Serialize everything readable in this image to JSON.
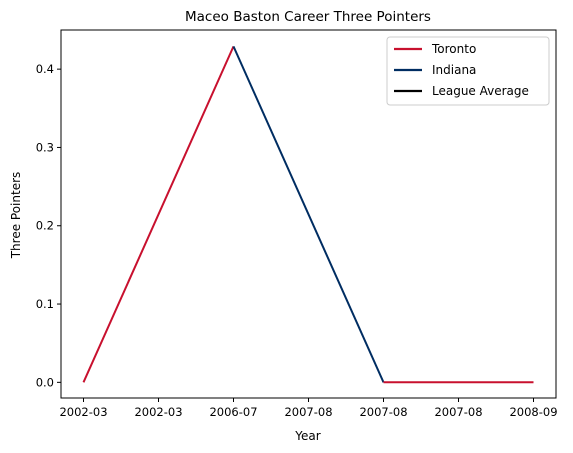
{
  "chart_data": {
    "type": "line",
    "title": "Maceo Baston Career Three Pointers",
    "xlabel": "Year",
    "ylabel": "Three Pointers",
    "x_tick_labels": [
      "2002-03",
      "2002-03",
      "2006-07",
      "2007-08",
      "2007-08",
      "2007-08",
      "2008-09"
    ],
    "xlim": [
      -0.3,
      6.3
    ],
    "ylim": [
      -0.02,
      0.45
    ],
    "y_ticks": [
      0.0,
      0.1,
      0.2,
      0.3,
      0.4
    ],
    "y_tick_labels": [
      "0.0",
      "0.1",
      "0.2",
      "0.3",
      "0.4"
    ],
    "grid": false,
    "legend": "top-right",
    "series": [
      {
        "name": "Toronto",
        "color": "#c8102e",
        "x": [
          0,
          2
        ],
        "y": [
          0.0,
          0.429
        ]
      },
      {
        "name": "Indiana",
        "color": "#002d62",
        "x": [
          2,
          4
        ],
        "y": [
          0.429,
          0.0
        ]
      },
      {
        "name": "Toronto",
        "color": "#c8102e",
        "x": [
          4,
          6
        ],
        "y": [
          0.0,
          0.0
        ]
      },
      {
        "name": "League Average",
        "color": "#000000",
        "x": [],
        "y": []
      }
    ],
    "legend_entries": [
      {
        "name": "Toronto",
        "color": "#c8102e"
      },
      {
        "name": "Indiana",
        "color": "#002d62"
      },
      {
        "name": "League Average",
        "color": "#000000"
      }
    ]
  }
}
